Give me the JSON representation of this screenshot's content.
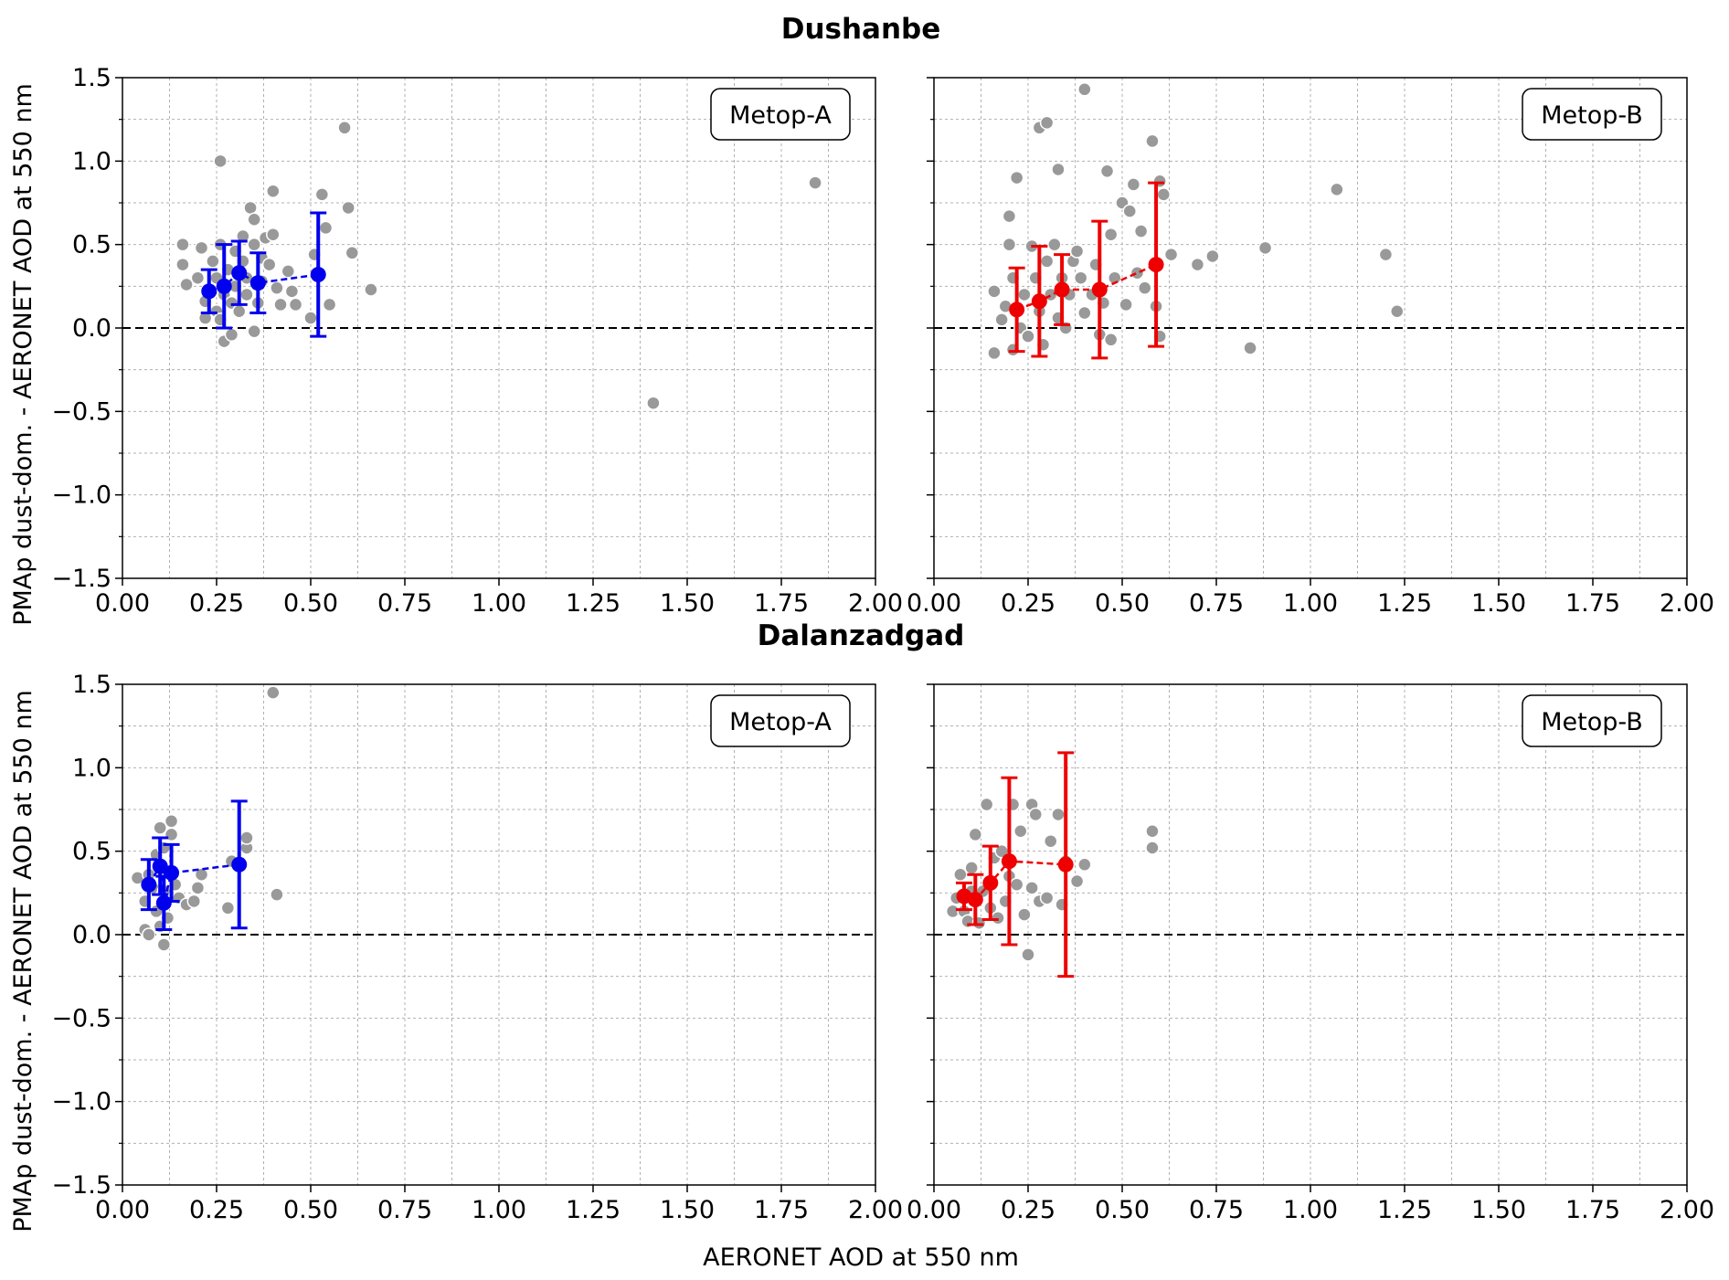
{
  "figure": {
    "xlabel": "AERONET AOD at 550 nm",
    "ylabel": "PMAp dust-dom. - AERONET AOD at 550 nm"
  },
  "colors": {
    "scatter": "#999999",
    "metop_a": "#0000ee",
    "metop_b": "#ee0000",
    "grid": "#b0b0b0",
    "zero_line": "#000000"
  },
  "chart_data": [
    {
      "type": "scatter",
      "site": "Dushanbe",
      "title": "Metop-A",
      "color": "#0000ee",
      "xlim": [
        0,
        2.0
      ],
      "ylim": [
        -1.5,
        1.5
      ],
      "xticks": [
        "0.00",
        "0.25",
        "0.50",
        "0.75",
        "1.00",
        "1.25",
        "1.50",
        "1.75",
        "2.00"
      ],
      "yticks": [
        "1.5",
        "1.0",
        "0.5",
        "0.0",
        "−0.5",
        "−1.0",
        "−1.5"
      ],
      "points": [
        [
          0.16,
          0.5
        ],
        [
          0.16,
          0.38
        ],
        [
          0.17,
          0.26
        ],
        [
          0.2,
          0.3
        ],
        [
          0.21,
          0.48
        ],
        [
          0.22,
          0.16
        ],
        [
          0.22,
          0.06
        ],
        [
          0.23,
          0.22
        ],
        [
          0.24,
          0.4
        ],
        [
          0.25,
          0.1
        ],
        [
          0.25,
          0.3
        ],
        [
          0.26,
          1.0
        ],
        [
          0.26,
          0.5
        ],
        [
          0.26,
          0.05
        ],
        [
          0.27,
          -0.08
        ],
        [
          0.27,
          0.2
        ],
        [
          0.28,
          0.35
        ],
        [
          0.29,
          0.15
        ],
        [
          0.29,
          -0.04
        ],
        [
          0.3,
          0.46
        ],
        [
          0.3,
          0.25
        ],
        [
          0.31,
          0.1
        ],
        [
          0.32,
          0.55
        ],
        [
          0.32,
          0.4
        ],
        [
          0.33,
          0.3
        ],
        [
          0.33,
          0.2
        ],
        [
          0.34,
          0.72
        ],
        [
          0.35,
          0.65
        ],
        [
          0.35,
          0.5
        ],
        [
          0.35,
          -0.02
        ],
        [
          0.36,
          0.15
        ],
        [
          0.37,
          0.42
        ],
        [
          0.37,
          0.28
        ],
        [
          0.38,
          0.54
        ],
        [
          0.39,
          0.38
        ],
        [
          0.4,
          0.82
        ],
        [
          0.4,
          0.56
        ],
        [
          0.41,
          0.24
        ],
        [
          0.42,
          0.14
        ],
        [
          0.44,
          0.34
        ],
        [
          0.45,
          0.22
        ],
        [
          0.46,
          0.14
        ],
        [
          0.5,
          0.06
        ],
        [
          0.51,
          0.44
        ],
        [
          0.53,
          0.8
        ],
        [
          0.54,
          0.6
        ],
        [
          0.55,
          0.14
        ],
        [
          0.59,
          1.2
        ],
        [
          0.6,
          0.72
        ],
        [
          0.61,
          0.45
        ],
        [
          0.66,
          0.23
        ],
        [
          1.41,
          -0.45
        ],
        [
          1.84,
          0.87
        ]
      ],
      "binned": [
        {
          "x": 0.23,
          "y": 0.22,
          "err": 0.13
        },
        {
          "x": 0.27,
          "y": 0.25,
          "err": 0.25
        },
        {
          "x": 0.31,
          "y": 0.33,
          "err": 0.19
        },
        {
          "x": 0.36,
          "y": 0.27,
          "err": 0.18
        },
        {
          "x": 0.52,
          "y": 0.32,
          "err": 0.37
        }
      ]
    },
    {
      "type": "scatter",
      "site": "Dushanbe",
      "title": "Metop-B",
      "color": "#ee0000",
      "xlim": [
        0,
        2.0
      ],
      "ylim": [
        -1.5,
        1.5
      ],
      "xticks": [
        "0.00",
        "0.25",
        "0.50",
        "0.75",
        "1.00",
        "1.25",
        "1.50",
        "1.75",
        "2.00"
      ],
      "yticks": [
        "1.5",
        "1.0",
        "0.5",
        "0.0",
        "−0.5",
        "−1.0",
        "−1.5"
      ],
      "points": [
        [
          0.16,
          0.22
        ],
        [
          0.16,
          -0.15
        ],
        [
          0.18,
          0.05
        ],
        [
          0.19,
          0.13
        ],
        [
          0.2,
          0.67
        ],
        [
          0.2,
          0.5
        ],
        [
          0.21,
          0.3
        ],
        [
          0.21,
          -0.13
        ],
        [
          0.22,
          0.9
        ],
        [
          0.23,
          0.0
        ],
        [
          0.24,
          0.2
        ],
        [
          0.25,
          -0.05
        ],
        [
          0.26,
          0.49
        ],
        [
          0.27,
          0.3
        ],
        [
          0.28,
          1.2
        ],
        [
          0.28,
          0.1
        ],
        [
          0.29,
          -0.1
        ],
        [
          0.3,
          1.23
        ],
        [
          0.3,
          0.4
        ],
        [
          0.31,
          0.2
        ],
        [
          0.32,
          0.5
        ],
        [
          0.33,
          0.95
        ],
        [
          0.33,
          0.06
        ],
        [
          0.34,
          0.3
        ],
        [
          0.35,
          0.0
        ],
        [
          0.36,
          0.2
        ],
        [
          0.37,
          0.4
        ],
        [
          0.38,
          0.46
        ],
        [
          0.39,
          0.3
        ],
        [
          0.4,
          1.43
        ],
        [
          0.4,
          0.09
        ],
        [
          0.42,
          0.2
        ],
        [
          0.43,
          0.38
        ],
        [
          0.44,
          -0.04
        ],
        [
          0.45,
          0.15
        ],
        [
          0.46,
          0.94
        ],
        [
          0.47,
          0.56
        ],
        [
          0.47,
          -0.07
        ],
        [
          0.48,
          0.3
        ],
        [
          0.5,
          0.75
        ],
        [
          0.51,
          0.14
        ],
        [
          0.52,
          0.7
        ],
        [
          0.53,
          0.86
        ],
        [
          0.54,
          0.33
        ],
        [
          0.55,
          0.58
        ],
        [
          0.56,
          0.24
        ],
        [
          0.58,
          1.12
        ],
        [
          0.59,
          0.13
        ],
        [
          0.6,
          0.88
        ],
        [
          0.6,
          -0.05
        ],
        [
          0.61,
          0.8
        ],
        [
          0.63,
          0.44
        ],
        [
          0.7,
          0.38
        ],
        [
          0.74,
          0.43
        ],
        [
          0.84,
          -0.12
        ],
        [
          0.88,
          0.48
        ],
        [
          1.07,
          0.83
        ],
        [
          1.2,
          0.44
        ],
        [
          1.23,
          0.1
        ]
      ],
      "binned": [
        {
          "x": 0.22,
          "y": 0.11,
          "err": 0.25
        },
        {
          "x": 0.28,
          "y": 0.16,
          "err": 0.33
        },
        {
          "x": 0.34,
          "y": 0.23,
          "err": 0.21
        },
        {
          "x": 0.44,
          "y": 0.23,
          "err": 0.41
        },
        {
          "x": 0.59,
          "y": 0.38,
          "err": 0.49
        }
      ]
    },
    {
      "type": "scatter",
      "site": "Dalanzadgad",
      "title": "Metop-A",
      "color": "#0000ee",
      "xlim": [
        0,
        2.0
      ],
      "ylim": [
        -1.5,
        1.5
      ],
      "xticks": [
        "0.00",
        "0.25",
        "0.50",
        "0.75",
        "1.00",
        "1.25",
        "1.50",
        "1.75",
        "2.00"
      ],
      "yticks": [
        "1.5",
        "1.0",
        "0.5",
        "0.0",
        "−0.5",
        "−1.0",
        "−1.5"
      ],
      "points": [
        [
          0.04,
          0.34
        ],
        [
          0.06,
          0.03
        ],
        [
          0.06,
          0.2
        ],
        [
          0.07,
          0.0
        ],
        [
          0.07,
          0.36
        ],
        [
          0.08,
          0.28
        ],
        [
          0.09,
          0.48
        ],
        [
          0.09,
          0.14
        ],
        [
          0.1,
          0.64
        ],
        [
          0.1,
          0.05
        ],
        [
          0.11,
          0.52
        ],
        [
          0.11,
          0.26
        ],
        [
          0.11,
          -0.06
        ],
        [
          0.12,
          0.38
        ],
        [
          0.12,
          0.1
        ],
        [
          0.13,
          0.68
        ],
        [
          0.13,
          0.6
        ],
        [
          0.14,
          0.3
        ],
        [
          0.15,
          0.22
        ],
        [
          0.17,
          0.18
        ],
        [
          0.19,
          0.2
        ],
        [
          0.2,
          0.28
        ],
        [
          0.21,
          0.36
        ],
        [
          0.28,
          0.16
        ],
        [
          0.29,
          0.44
        ],
        [
          0.33,
          0.52
        ],
        [
          0.33,
          0.58
        ],
        [
          0.4,
          1.45
        ],
        [
          0.41,
          0.24
        ]
      ],
      "binned": [
        {
          "x": 0.07,
          "y": 0.3,
          "err": 0.15
        },
        {
          "x": 0.1,
          "y": 0.41,
          "err": 0.17
        },
        {
          "x": 0.11,
          "y": 0.19,
          "err": 0.16
        },
        {
          "x": 0.13,
          "y": 0.37,
          "err": 0.17
        },
        {
          "x": 0.31,
          "y": 0.42,
          "err": 0.38
        }
      ]
    },
    {
      "type": "scatter",
      "site": "Dalanzadgad",
      "title": "Metop-B",
      "color": "#ee0000",
      "xlim": [
        0,
        2.0
      ],
      "ylim": [
        -1.5,
        1.5
      ],
      "xticks": [
        "0.00",
        "0.25",
        "0.50",
        "0.75",
        "1.00",
        "1.25",
        "1.50",
        "1.75",
        "2.00"
      ],
      "yticks": [
        "1.5",
        "1.0",
        "0.5",
        "0.0",
        "−0.5",
        "−1.0",
        "−1.5"
      ],
      "points": [
        [
          0.05,
          0.14
        ],
        [
          0.06,
          0.22
        ],
        [
          0.07,
          0.36
        ],
        [
          0.08,
          0.14
        ],
        [
          0.09,
          0.08
        ],
        [
          0.1,
          0.4
        ],
        [
          0.1,
          0.26
        ],
        [
          0.11,
          0.6
        ],
        [
          0.12,
          0.07
        ],
        [
          0.13,
          0.26
        ],
        [
          0.14,
          0.78
        ],
        [
          0.15,
          0.16
        ],
        [
          0.16,
          0.46
        ],
        [
          0.17,
          0.1
        ],
        [
          0.18,
          0.5
        ],
        [
          0.19,
          0.2
        ],
        [
          0.2,
          0.35
        ],
        [
          0.21,
          0.78
        ],
        [
          0.22,
          0.3
        ],
        [
          0.23,
          0.62
        ],
        [
          0.24,
          0.12
        ],
        [
          0.25,
          -0.12
        ],
        [
          0.26,
          0.78
        ],
        [
          0.26,
          0.28
        ],
        [
          0.27,
          0.72
        ],
        [
          0.28,
          0.2
        ],
        [
          0.3,
          0.22
        ],
        [
          0.31,
          0.56
        ],
        [
          0.33,
          0.72
        ],
        [
          0.34,
          0.18
        ],
        [
          0.35,
          0.44
        ],
        [
          0.38,
          0.32
        ],
        [
          0.4,
          0.42
        ],
        [
          0.58,
          0.62
        ],
        [
          0.58,
          0.52
        ]
      ],
      "binned": [
        {
          "x": 0.08,
          "y": 0.23,
          "err": 0.08
        },
        {
          "x": 0.11,
          "y": 0.21,
          "err": 0.15
        },
        {
          "x": 0.15,
          "y": 0.31,
          "err": 0.22
        },
        {
          "x": 0.2,
          "y": 0.44,
          "err": 0.5
        },
        {
          "x": 0.35,
          "y": 0.42,
          "err": 0.67
        }
      ]
    }
  ]
}
